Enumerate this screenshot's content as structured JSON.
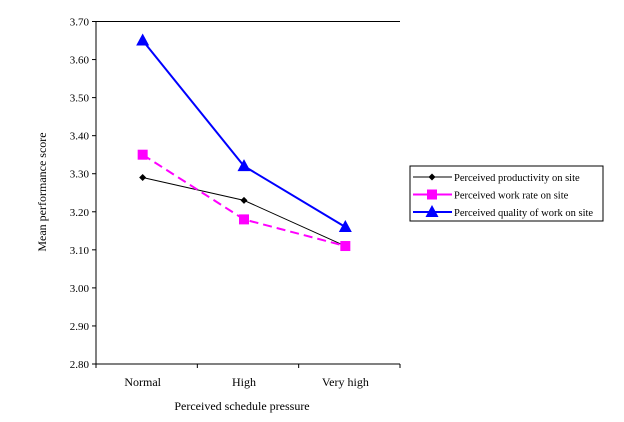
{
  "chart_data": {
    "type": "line",
    "title": "",
    "xlabel": "Perceived schedule pressure",
    "ylabel": "Mean performance score",
    "categories": [
      "Normal",
      "High",
      "Very high"
    ],
    "ylim": [
      2.8,
      3.7
    ],
    "yticks": [
      "2.80",
      "2.90",
      "3.00",
      "3.10",
      "3.20",
      "3.30",
      "3.40",
      "3.50",
      "3.60",
      "3.70"
    ],
    "legend_position": "right",
    "series": [
      {
        "name": "Perceived productivity on site",
        "values": [
          3.29,
          3.23,
          3.11
        ],
        "color": "#000000",
        "marker": "diamond",
        "dash": false
      },
      {
        "name": "Perceived work rate on site",
        "values": [
          3.35,
          3.18,
          3.11
        ],
        "color": "#ff00ff",
        "marker": "square",
        "dash": true
      },
      {
        "name": "Perceived quality of work on site",
        "values": [
          3.65,
          3.32,
          3.16
        ],
        "color": "#0000ff",
        "marker": "triangle",
        "dash": false
      }
    ]
  }
}
